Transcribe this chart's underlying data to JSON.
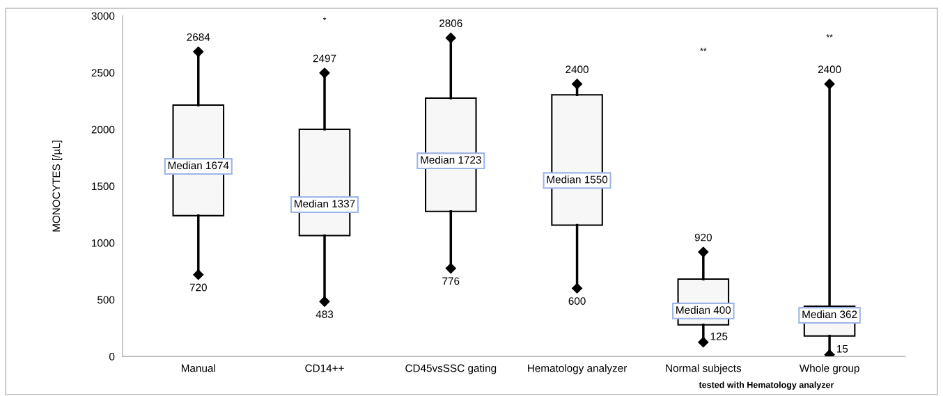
{
  "chart_data": {
    "type": "box",
    "ylabel": "MONOCYTES [/µL]",
    "categories": [
      "Manual",
      "CD14++",
      "CD45vsSSC gating",
      "Hematology analyzer",
      "Normal subjects",
      "Whole group"
    ],
    "boxes": [
      {
        "low": 720,
        "q1": 1240,
        "median": 1674,
        "q3": 2214,
        "high": 2684
      },
      {
        "low": 483,
        "q1": 1064,
        "median": 1337,
        "q3": 2000,
        "high": 2497
      },
      {
        "low": 776,
        "q1": 1277,
        "median": 1723,
        "q3": 2275,
        "high": 2806
      },
      {
        "low": 600,
        "q1": 1156,
        "median": 1550,
        "q3": 2304,
        "high": 2400
      },
      {
        "low": 125,
        "q1": 278,
        "median": 400,
        "q3": 681,
        "high": 920
      },
      {
        "low": 15,
        "q1": 180,
        "median": 362,
        "q3": 442,
        "high": 2400
      }
    ],
    "color": "#f7f7f7",
    "ylim": [
      0,
      3000
    ],
    "yticks": [
      0,
      500,
      1000,
      1500,
      2000,
      2500,
      3000
    ],
    "grid": false,
    "legend": false,
    "marker": "diamond",
    "annotations": [
      {
        "text": "Median 1674",
        "x": "Manual",
        "y": 1674
      },
      {
        "text": "Median 1337",
        "x": "CD14++",
        "y": 1337
      },
      {
        "text": "Median 1723",
        "x": "CD45vsSSC gating",
        "y": 1723
      },
      {
        "text": "Median 1550",
        "x": "Hematology analyzer",
        "y": 1550
      },
      {
        "text": "Median 400",
        "x": "Normal subjects",
        "y": 400
      },
      {
        "text": "Median 362",
        "x": "Whole group",
        "y": 362
      },
      {
        "text": "2684",
        "x": "Manual",
        "y": 2684
      },
      {
        "text": "720",
        "x": "Manual",
        "y": 720
      },
      {
        "text": "2497",
        "x": "CD14++",
        "y": 2497
      },
      {
        "text": "483",
        "x": "CD14++",
        "y": 483
      },
      {
        "text": "2806",
        "x": "CD45vsSSC gating",
        "y": 2806
      },
      {
        "text": "776",
        "x": "CD45vsSSC gating",
        "y": 776
      },
      {
        "text": "2400",
        "x": "Hematology analyzer",
        "y": 2400
      },
      {
        "text": "600",
        "x": "Hematology analyzer",
        "y": 600
      },
      {
        "text": "920",
        "x": "Normal subjects",
        "y": 920
      },
      {
        "text": "125",
        "x": "Normal subjects",
        "y": 125
      },
      {
        "text": "2400",
        "x": "Whole group",
        "y": 2400
      },
      {
        "text": "15",
        "x": "Whole group",
        "y": 15
      },
      "*",
      "**",
      "**",
      "tested with Hematology analyzer"
    ]
  }
}
